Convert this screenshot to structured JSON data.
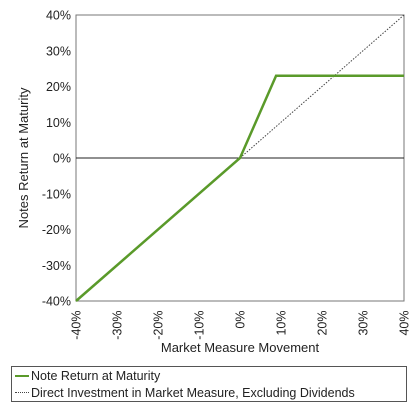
{
  "chart_data": {
    "type": "line",
    "xlabel": "Market Measure Movement",
    "ylabel": "Notes Return at Maturity",
    "xlim": [
      -40,
      40
    ],
    "ylim": [
      -40,
      40
    ],
    "x_ticks": [
      "-40%",
      "-30%",
      "-20%",
      "-10%",
      "0%",
      "10%",
      "20%",
      "30%",
      "40%"
    ],
    "y_ticks": [
      "40%",
      "30%",
      "20%",
      "10%",
      "0%",
      "-10%",
      "-20%",
      "-30%",
      "-40%"
    ],
    "x_tick_values": [
      -40,
      -30,
      -20,
      -10,
      0,
      10,
      20,
      30,
      40
    ],
    "y_tick_values": [
      40,
      30,
      20,
      10,
      0,
      -10,
      -20,
      -30,
      -40
    ],
    "grid": false,
    "legend_position": "bottom",
    "series": [
      {
        "name": "Note Return at Maturity",
        "style": "solid",
        "color": "#5a9a2a",
        "x": [
          -40,
          0,
          8.8,
          40
        ],
        "y": [
          -40,
          0,
          23,
          23
        ]
      },
      {
        "name": "Direct Investment in Market Measure, Excluding Dividends",
        "style": "dotted",
        "color": "#444444",
        "x": [
          0,
          40
        ],
        "y": [
          0,
          40
        ]
      }
    ]
  },
  "legend": {
    "items": [
      "Note Return at Maturity",
      "Direct Investment in Market Measure, Excluding Dividends"
    ]
  }
}
